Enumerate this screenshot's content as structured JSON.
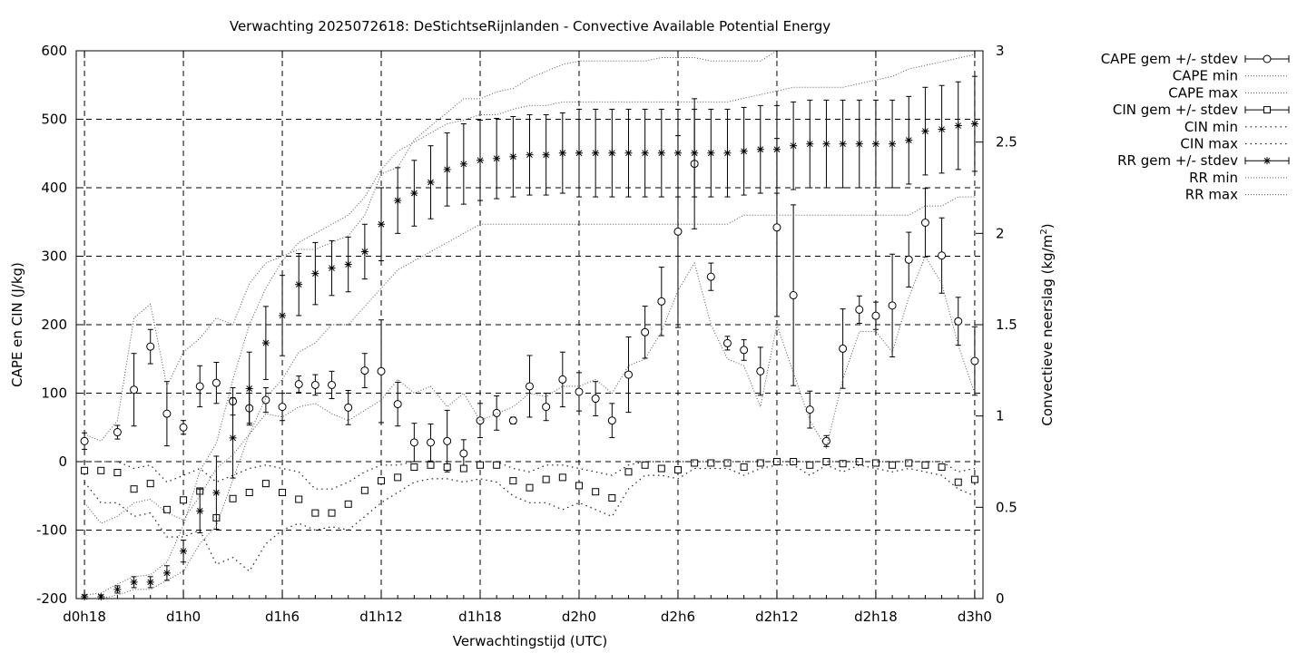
{
  "chart_data": {
    "type": "line",
    "title": "Verwachting 2025072618: DeStichtseRijnlanden - Convective Available Potential Energy",
    "xlabel": "Verwachtingstijd (UTC)",
    "ylabel": "CAPE en CIN (J/kg)",
    "y2label_main": "Convectieve neerslag (kg/m",
    "y2label_sup": "2",
    "y2label_end": ")",
    "x_unit": "hours",
    "xlim": [
      -0.5,
      54.5
    ],
    "ylim": [
      -200,
      600
    ],
    "y2lim": [
      0,
      3
    ],
    "grid": true,
    "legend_position": "outside top-right",
    "x_ticks": [
      {
        "x": 0,
        "label": "d0h18"
      },
      {
        "x": 6,
        "label": "d1h0"
      },
      {
        "x": 12,
        "label": "d1h6"
      },
      {
        "x": 18,
        "label": "d1h12"
      },
      {
        "x": 24,
        "label": "d1h18"
      },
      {
        "x": 30,
        "label": "d2h0"
      },
      {
        "x": 36,
        "label": "d2h6"
      },
      {
        "x": 42,
        "label": "d2h12"
      },
      {
        "x": 48,
        "label": "d2h18"
      },
      {
        "x": 54,
        "label": "d3h0"
      }
    ],
    "y_ticks": [
      -200,
      -100,
      0,
      100,
      200,
      300,
      400,
      500,
      600
    ],
    "y2_ticks": [
      {
        "v": 0,
        "label": "0"
      },
      {
        "v": 0.5,
        "label": "0.5"
      },
      {
        "v": 1,
        "label": "1"
      },
      {
        "v": 1.5,
        "label": "1.5"
      },
      {
        "v": 2,
        "label": "2"
      },
      {
        "v": 2.5,
        "label": "2.5"
      },
      {
        "v": 3,
        "label": "3"
      }
    ],
    "legend": [
      {
        "label": "CAPE gem +/- stdev",
        "style": "errorbar-circle"
      },
      {
        "label": "CAPE min",
        "style": "dotted"
      },
      {
        "label": "CAPE max",
        "style": "dotted"
      },
      {
        "label": "CIN gem +/- stdev",
        "style": "errorbar-square"
      },
      {
        "label": "CIN min",
        "style": "dotted-coarse"
      },
      {
        "label": "CIN max",
        "style": "dotted-coarse"
      },
      {
        "label": "RR gem +/- stdev",
        "style": "errorbar-star"
      },
      {
        "label": "RR min",
        "style": "dotted"
      },
      {
        "label": "RR max",
        "style": "dotted"
      }
    ],
    "x": [
      0,
      1,
      2,
      3,
      4,
      5,
      6,
      7,
      8,
      9,
      10,
      11,
      12,
      13,
      14,
      15,
      16,
      17,
      18,
      19,
      20,
      21,
      22,
      23,
      24,
      25,
      26,
      27,
      28,
      29,
      30,
      31,
      32,
      33,
      34,
      35,
      36,
      37,
      38,
      39,
      40,
      41,
      42,
      43,
      44,
      45,
      46,
      47,
      48,
      49,
      50,
      51,
      52,
      53,
      54
    ],
    "series": [
      {
        "name": "CAPE gem +/- stdev",
        "axis": "y",
        "marker": "circle",
        "values": [
          30,
          null,
          43,
          105,
          168,
          70,
          50,
          110,
          115,
          88,
          78,
          90,
          80,
          113,
          112,
          112,
          79,
          133,
          132,
          84,
          28,
          28,
          30,
          12,
          60,
          71,
          60,
          110,
          80,
          120,
          102,
          92,
          60,
          127,
          189,
          234,
          336,
          435,
          270,
          173,
          163,
          132,
          342,
          243,
          76,
          30,
          165,
          222,
          213,
          228,
          295,
          349,
          301,
          205,
          147
        ],
        "stdev": [
          12,
          null,
          10,
          53,
          25,
          47,
          10,
          30,
          30,
          20,
          22,
          18,
          20,
          12,
          15,
          20,
          25,
          25,
          75,
          32,
          28,
          27,
          45,
          20,
          25,
          25,
          5,
          45,
          20,
          40,
          28,
          25,
          25,
          55,
          38,
          50,
          140,
          95,
          20,
          10,
          15,
          35,
          130,
          132,
          27,
          8,
          58,
          20,
          20,
          75,
          40,
          50,
          55,
          35,
          50
        ]
      },
      {
        "name": "CIN gem +/- stdev",
        "axis": "y",
        "marker": "square",
        "values": [
          -13,
          -13,
          -16,
          -40,
          -32,
          -70,
          -56,
          -43,
          -82,
          -54,
          -45,
          -32,
          -45,
          -55,
          -75,
          -75,
          -62,
          -42,
          -28,
          -23,
          -8,
          -5,
          -8,
          -10,
          -5,
          -5,
          -28,
          -38,
          -26,
          -23,
          -35,
          -44,
          -53,
          -15,
          -5,
          -10,
          -12,
          -2,
          -2,
          -2,
          -8,
          -2,
          0,
          0,
          -5,
          0,
          -3,
          0,
          -2,
          -5,
          -2,
          -5,
          -8,
          -30,
          -26
        ]
      },
      {
        "name": "CAPE min",
        "axis": "y",
        "style": "dotted",
        "values": [
          -60,
          -90,
          -80,
          -60,
          -55,
          -75,
          -85,
          -50,
          -10,
          10,
          40,
          70,
          65,
          80,
          85,
          70,
          60,
          75,
          90,
          120,
          100,
          110,
          80,
          100,
          60,
          70,
          80,
          100,
          95,
          110,
          110,
          120,
          100,
          140,
          150,
          190,
          250,
          290,
          200,
          150,
          140,
          80,
          200,
          130,
          60,
          20,
          120,
          190,
          190,
          160,
          240,
          300,
          260,
          170,
          100
        ]
      },
      {
        "name": "CAPE max",
        "axis": "y",
        "style": "dotted",
        "values": [
          40,
          30,
          60,
          210,
          230,
          110,
          160,
          180,
          210,
          200,
          260,
          290,
          300,
          310,
          310,
          320,
          330,
          360,
          420,
          430,
          470,
          490,
          510,
          530,
          530,
          540,
          545,
          560,
          570,
          580,
          585,
          585,
          585,
          585,
          585,
          590,
          590,
          590,
          585,
          585,
          585,
          585,
          600,
          600,
          600,
          600,
          600,
          600,
          600,
          600,
          600,
          600,
          600,
          600,
          600
        ]
      },
      {
        "name": "CIN min",
        "axis": "y",
        "style": "dotted-coarse",
        "values": [
          -30,
          -60,
          -60,
          -80,
          -75,
          -110,
          -110,
          -100,
          -150,
          -140,
          -160,
          -120,
          -100,
          -90,
          -100,
          -95,
          -100,
          -80,
          -60,
          -45,
          -30,
          -25,
          -25,
          -30,
          -25,
          -30,
          -50,
          -60,
          -60,
          -70,
          -60,
          -70,
          -80,
          -40,
          -20,
          -20,
          -25,
          -10,
          -10,
          -10,
          -20,
          -10,
          -5,
          -5,
          -20,
          -5,
          -15,
          -5,
          -10,
          -15,
          -10,
          -15,
          -20,
          -40,
          -50
        ]
      },
      {
        "name": "CIN max",
        "axis": "y",
        "style": "dotted-coarse",
        "values": [
          0,
          0,
          0,
          -10,
          -5,
          -30,
          -20,
          -10,
          -30,
          -20,
          -10,
          -5,
          -10,
          -15,
          -40,
          -40,
          -30,
          -15,
          -5,
          -5,
          0,
          0,
          0,
          0,
          0,
          0,
          -10,
          -15,
          -5,
          -5,
          -10,
          -15,
          -20,
          -5,
          0,
          0,
          0,
          0,
          0,
          0,
          0,
          0,
          0,
          0,
          0,
          0,
          0,
          0,
          0,
          0,
          0,
          0,
          0,
          -15,
          -10
        ]
      },
      {
        "name": "RR gem +/- stdev",
        "axis": "y2",
        "marker": "star",
        "values": [
          0.01,
          0.01,
          0.05,
          0.09,
          0.09,
          0.14,
          0.26,
          0.48,
          0.58,
          0.88,
          1.15,
          1.4,
          1.55,
          1.72,
          1.78,
          1.81,
          1.83,
          1.9,
          2.05,
          2.18,
          2.22,
          2.28,
          2.35,
          2.38,
          2.4,
          2.41,
          2.42,
          2.43,
          2.43,
          2.44,
          2.44,
          2.44,
          2.44,
          2.44,
          2.44,
          2.44,
          2.44,
          2.44,
          2.44,
          2.44,
          2.45,
          2.46,
          2.46,
          2.48,
          2.49,
          2.49,
          2.49,
          2.49,
          2.49,
          2.49,
          2.51,
          2.56,
          2.57,
          2.59,
          2.6
        ],
        "stdev": [
          0.01,
          0.01,
          0.02,
          0.03,
          0.03,
          0.04,
          0.06,
          0.12,
          0.2,
          0.22,
          0.2,
          0.2,
          0.22,
          0.17,
          0.17,
          0.15,
          0.15,
          0.15,
          0.2,
          0.18,
          0.18,
          0.2,
          0.2,
          0.22,
          0.22,
          0.22,
          0.22,
          0.22,
          0.22,
          0.22,
          0.24,
          0.24,
          0.24,
          0.24,
          0.24,
          0.24,
          0.24,
          0.24,
          0.24,
          0.24,
          0.24,
          0.24,
          0.24,
          0.24,
          0.24,
          0.24,
          0.24,
          0.24,
          0.24,
          0.24,
          0.24,
          0.24,
          0.24,
          0.24,
          0.26
        ]
      },
      {
        "name": "RR min",
        "axis": "y2",
        "style": "dotted",
        "values": [
          0,
          0,
          0.02,
          0.05,
          0.05,
          0.1,
          0.15,
          0.3,
          0.4,
          0.65,
          0.9,
          1.1,
          1.2,
          1.35,
          1.4,
          1.5,
          1.5,
          1.6,
          1.7,
          1.8,
          1.85,
          1.9,
          1.95,
          2.0,
          2.05,
          2.05,
          2.05,
          2.05,
          2.05,
          2.05,
          2.05,
          2.05,
          2.05,
          2.05,
          2.05,
          2.05,
          2.05,
          2.05,
          2.05,
          2.05,
          2.1,
          2.1,
          2.1,
          2.1,
          2.1,
          2.1,
          2.1,
          2.1,
          2.1,
          2.1,
          2.1,
          2.15,
          2.15,
          2.2,
          2.2
        ]
      },
      {
        "name": "RR max",
        "axis": "y2",
        "style": "dotted",
        "values": [
          0.02,
          0.03,
          0.08,
          0.12,
          0.13,
          0.2,
          0.4,
          0.7,
          0.85,
          1.2,
          1.5,
          1.7,
          1.85,
          1.95,
          2.0,
          2.05,
          2.1,
          2.2,
          2.35,
          2.45,
          2.5,
          2.55,
          2.6,
          2.62,
          2.65,
          2.65,
          2.68,
          2.7,
          2.7,
          2.72,
          2.72,
          2.72,
          2.72,
          2.72,
          2.72,
          2.72,
          2.72,
          2.72,
          2.72,
          2.72,
          2.74,
          2.76,
          2.78,
          2.8,
          2.8,
          2.8,
          2.8,
          2.82,
          2.84,
          2.86,
          2.9,
          2.92,
          2.94,
          2.96,
          2.98
        ]
      }
    ]
  }
}
